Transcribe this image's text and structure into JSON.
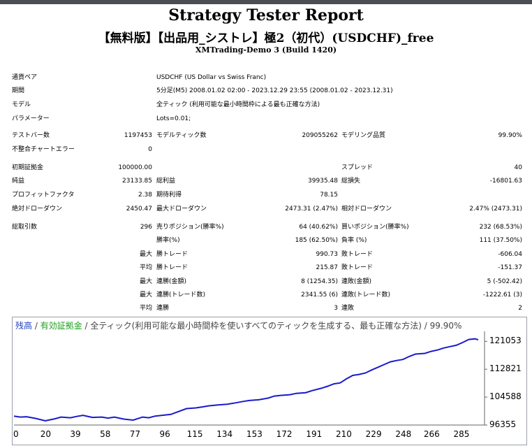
{
  "header": {
    "title": "Strategy Tester Report",
    "subtitle": "【無料版】【出品用_シストレ】極2（初代）(USDCHF)_free",
    "server": "XMTrading-Demo 3 (Build 1420)"
  },
  "settings": {
    "symbol_label": "通貨ペア",
    "symbol_value": "USDCHF (US Dollar vs Swiss Franc)",
    "period_label": "期間",
    "period_value": "5分足(M5) 2008.01.02 02:00 - 2023.12.29 23:55 (2008.01.02 - 2023.12.31)",
    "model_label": "モデル",
    "model_value": "全ティック (利用可能な最小時間枠による最も正確な方法)",
    "params_label": "パラメーター",
    "params_value": "Lots=0.01;"
  },
  "stats": {
    "bars_label": "テストバー数",
    "bars_value": "1197453",
    "ticks_label": "モデルティック数",
    "ticks_value": "209055262",
    "quality_label": "モデリング品質",
    "quality_value": "99.90%",
    "mismatch_label": "不整合チャートエラー",
    "mismatch_value": "0",
    "deposit_label": "初期証拠金",
    "deposit_value": "100000.00",
    "spread_label": "スプレッド",
    "spread_value": "40",
    "netprofit_label": "純益",
    "netprofit_value": "23133.85",
    "grossprofit_label": "総利益",
    "grossprofit_value": "39935.48",
    "grossloss_label": "総損失",
    "grossloss_value": "-16801.63",
    "pf_label": "プロフィットファクタ",
    "pf_value": "2.38",
    "expected_label": "期待利得",
    "expected_value": "78.15",
    "absdd_label": "絶対ドローダウン",
    "absdd_value": "2450.47",
    "maxdd_label": "最大ドローダウン",
    "maxdd_value": "2473.31 (2.47%)",
    "reldd_label": "相対ドローダウン",
    "reldd_value": "2.47% (2473.31)",
    "trades_label": "総取引数",
    "trades_value": "296",
    "short_label": "売りポジション(勝率%)",
    "short_value": "64 (40.62%)",
    "long_label": "買いポジション(勝率%)",
    "long_value": "232 (68.53%)",
    "win_label": "勝率(%)",
    "win_value": "185 (62.50%)",
    "loss_label": "負率 (%)",
    "loss_value": "111 (37.50%)",
    "max_label": "最大",
    "avg_label": "平均",
    "largest_win_label": "勝トレード",
    "largest_win_value": "990.73",
    "largest_loss_label": "敗トレード",
    "largest_loss_value": "-606.04",
    "avg_win_label": "勝トレード",
    "avg_win_value": "215.87",
    "avg_loss_label": "敗トレード",
    "avg_loss_value": "-151.37",
    "cons_win_amt_label": "連勝(金額)",
    "cons_win_amt_value": "8 (1254.35)",
    "cons_loss_amt_label": "連敗(金額)",
    "cons_loss_amt_value": "5 (-502.42)",
    "cons_win_cnt_label": "連勝(トレード数)",
    "cons_win_cnt_value": "2341.55 (6)",
    "cons_loss_cnt_label": "連敗(トレード数)",
    "cons_loss_cnt_value": "-1222.61 (3)",
    "avg_cons_win_label": "連勝",
    "avg_cons_win_value": "3",
    "avg_cons_loss_label": "連敗",
    "avg_cons_loss_value": "2"
  },
  "chart_data": {
    "type": "line",
    "legend": {
      "balance": "残高",
      "sep1": " / ",
      "equity": "有効証拠金",
      "rest": " / 全ティック(利用可能な最小時間枠を使いすべてのティックを生成する、最も正確な方法) / 99.90%"
    },
    "yticks": [
      "121053",
      "112821",
      "104588",
      "96355"
    ],
    "xticks": [
      "0",
      "20",
      "39",
      "58",
      "77",
      "96",
      "115",
      "134",
      "153",
      "172",
      "191",
      "210",
      "229",
      "248",
      "266",
      "285"
    ],
    "ylim": [
      96355,
      124000
    ],
    "xlim": [
      0,
      300
    ],
    "line_color": "#1a1acc",
    "series": [
      {
        "x": [
          0,
          4,
          8,
          14,
          20,
          22,
          26,
          30,
          36,
          40,
          44,
          50,
          56,
          60,
          64,
          70,
          76,
          80,
          82,
          86,
          90,
          96,
          100,
          104,
          110,
          116,
          120,
          124,
          130,
          136,
          140,
          146,
          150,
          156,
          162,
          166,
          170,
          176,
          180,
          186,
          190,
          196,
          200,
          204,
          208,
          212,
          216,
          220,
          224,
          228,
          232,
          236,
          240,
          244,
          248,
          252,
          256,
          262,
          266,
          270,
          274,
          278,
          282,
          286,
          290,
          294,
          296
        ],
        "y": [
          99000,
          98700,
          98800,
          98300,
          97600,
          97800,
          98200,
          98700,
          98500,
          98900,
          99200,
          98600,
          98700,
          98400,
          98700,
          98100,
          97800,
          98400,
          98700,
          98500,
          99000,
          99300,
          99500,
          100200,
          101200,
          101400,
          101700,
          102000,
          102300,
          102500,
          102800,
          103300,
          103600,
          103800,
          104300,
          104900,
          105100,
          105300,
          105700,
          105900,
          106500,
          107200,
          107800,
          108500,
          108800,
          110000,
          111000,
          111300,
          111700,
          112600,
          113400,
          114200,
          115000,
          115400,
          115700,
          116600,
          117300,
          117500,
          118100,
          118500,
          119100,
          119500,
          119900,
          120700,
          121600,
          121800,
          121500
        ]
      }
    ]
  }
}
